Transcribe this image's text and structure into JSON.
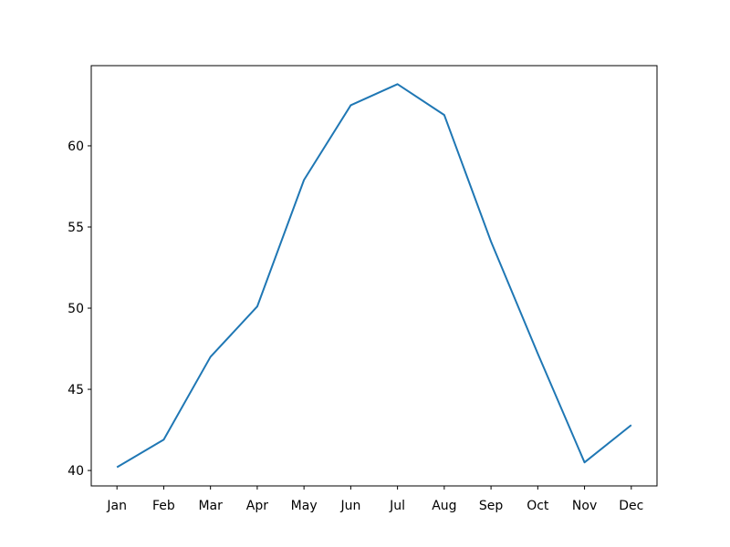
{
  "chart_data": {
    "type": "line",
    "categories": [
      "Jan",
      "Feb",
      "Mar",
      "Apr",
      "May",
      "Jun",
      "Jul",
      "Aug",
      "Sep",
      "Oct",
      "Nov",
      "Dec"
    ],
    "series": [
      {
        "color": "#1f77b4",
        "values": [
          40.2,
          41.9,
          47.0,
          50.1,
          57.9,
          62.5,
          63.8,
          61.9,
          54.1,
          47.2,
          40.5,
          42.8
        ]
      }
    ],
    "ylim": [
      39.05,
      64.94
    ],
    "yticks": [
      40,
      45,
      50,
      55,
      60
    ],
    "grid": false
  }
}
